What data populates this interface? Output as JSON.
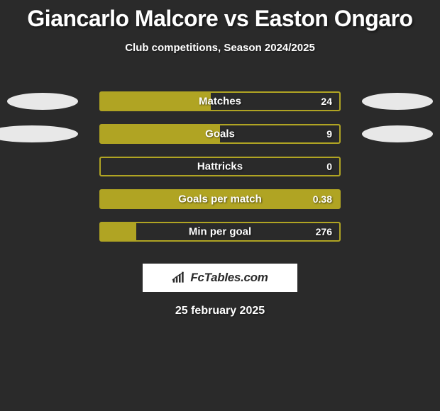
{
  "title": "Giancarlo Malcore vs Easton Ongaro",
  "subtitle": "Club competitions, Season 2024/2025",
  "stats": [
    {
      "label": "Matches",
      "value": "24",
      "fill_pct": 46,
      "show_left_ellipse": true,
      "show_right_ellipse": true,
      "left_ellipse_partial": false
    },
    {
      "label": "Goals",
      "value": "9",
      "fill_pct": 50,
      "show_left_ellipse": true,
      "show_right_ellipse": true,
      "left_ellipse_partial": true
    },
    {
      "label": "Hattricks",
      "value": "0",
      "fill_pct": 0,
      "show_left_ellipse": false,
      "show_right_ellipse": false,
      "left_ellipse_partial": false
    },
    {
      "label": "Goals per match",
      "value": "0.38",
      "fill_pct": 100,
      "show_left_ellipse": false,
      "show_right_ellipse": false,
      "left_ellipse_partial": false
    },
    {
      "label": "Min per goal",
      "value": "276",
      "fill_pct": 15,
      "show_left_ellipse": false,
      "show_right_ellipse": false,
      "left_ellipse_partial": false
    }
  ],
  "colors": {
    "bar_border": "#b0a423",
    "bar_fill": "#b0a423",
    "ellipse": "#e8e8e8",
    "background": "#2a2a2a"
  },
  "logo_text": "FcTables.com",
  "date": "25 february 2025"
}
